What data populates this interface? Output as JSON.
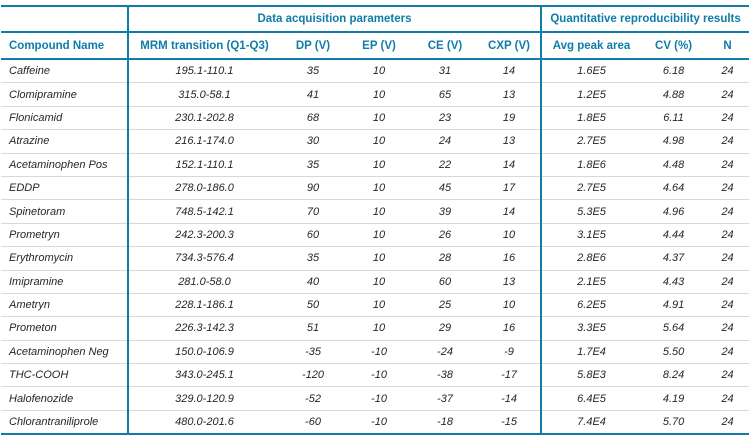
{
  "colors": {
    "accent": "#0f7da8",
    "row-line": "#d8d8d8",
    "text": "#262626"
  },
  "table": {
    "group_headers": {
      "acquisition": "Data acquisition parameters",
      "reproducibility": "Quantitative reproducibility results"
    },
    "columns": [
      "Compound Name",
      "MRM transition (Q1-Q3)",
      "DP (V)",
      "EP (V)",
      "CE (V)",
      "CXP (V)",
      "Avg peak area",
      "CV (%)",
      "N"
    ],
    "rows": [
      {
        "cells": [
          "Caffeine",
          "195.1-110.1",
          "35",
          "10",
          "31",
          "14",
          "1.6E5",
          "6.18",
          "24"
        ]
      },
      {
        "cells": [
          "Clomipramine",
          "315.0-58.1",
          "41",
          "10",
          "65",
          "13",
          "1.2E5",
          "4.88",
          "24"
        ]
      },
      {
        "cells": [
          "Flonicamid",
          "230.1-202.8",
          "68",
          "10",
          "23",
          "19",
          "1.8E5",
          "6.11",
          "24"
        ]
      },
      {
        "cells": [
          "Atrazine",
          "216.1-174.0",
          "30",
          "10",
          "24",
          "13",
          "2.7E5",
          "4.98",
          "24"
        ]
      },
      {
        "cells": [
          "Acetaminophen Pos",
          "152.1-110.1",
          "35",
          "10",
          "22",
          "14",
          "1.8E6",
          "4.48",
          "24"
        ]
      },
      {
        "cells": [
          "EDDP",
          "278.0-186.0",
          "90",
          "10",
          "45",
          "17",
          "2.7E5",
          "4.64",
          "24"
        ]
      },
      {
        "cells": [
          "Spinetoram",
          "748.5-142.1",
          "70",
          "10",
          "39",
          "14",
          "5.3E5",
          "4.96",
          "24"
        ]
      },
      {
        "cells": [
          "Prometryn",
          "242.3-200.3",
          "60",
          "10",
          "26",
          "10",
          "3.1E5",
          "4.44",
          "24"
        ]
      },
      {
        "cells": [
          "Erythromycin",
          "734.3-576.4",
          "35",
          "10",
          "28",
          "16",
          "2.8E6",
          "4.37",
          "24"
        ]
      },
      {
        "cells": [
          "Imipramine",
          "281.0-58.0",
          "40",
          "10",
          "60",
          "13",
          "2.1E5",
          "4.43",
          "24"
        ]
      },
      {
        "cells": [
          "Ametryn",
          "228.1-186.1",
          "50",
          "10",
          "25",
          "10",
          "6.2E5",
          "4.91",
          "24"
        ]
      },
      {
        "cells": [
          "Prometon",
          "226.3-142.3",
          "51",
          "10",
          "29",
          "16",
          "3.3E5",
          "5.64",
          "24"
        ]
      },
      {
        "cells": [
          "Acetaminophen Neg",
          "150.0-106.9",
          "-35",
          "-10",
          "-24",
          "-9",
          "1.7E4",
          "5.50",
          "24"
        ]
      },
      {
        "cells": [
          "THC-COOH",
          "343.0-245.1",
          "-120",
          "-10",
          "-38",
          "-17",
          "5.8E3",
          "8.24",
          "24"
        ]
      },
      {
        "cells": [
          "Halofenozide",
          "329.0-120.9",
          "-52",
          "-10",
          "-37",
          "-14",
          "6.4E5",
          "4.19",
          "24"
        ]
      },
      {
        "cells": [
          "Chlorantraniliprole",
          "480.0-201.6",
          "-60",
          "-10",
          "-18",
          "-15",
          "7.4E4",
          "5.70",
          "24"
        ]
      }
    ]
  }
}
